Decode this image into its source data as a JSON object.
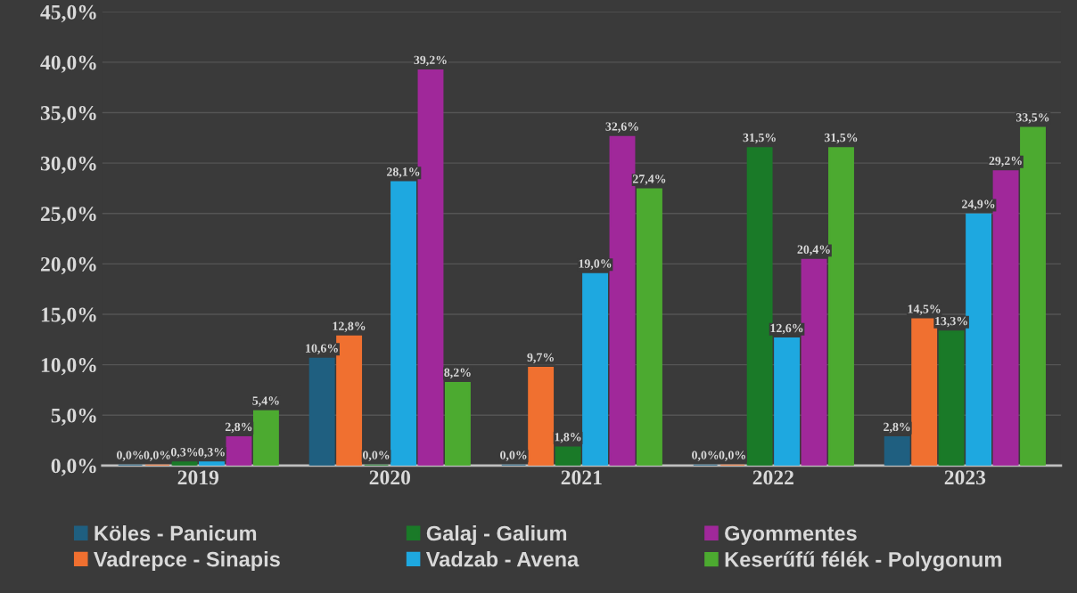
{
  "chart_data": {
    "type": "bar",
    "categories": [
      "2019",
      "2020",
      "2021",
      "2022",
      "2023"
    ],
    "series": [
      {
        "name": "Köles - Panicum",
        "color": "#1f5f80",
        "values": [
          0.0,
          10.6,
          0.0,
          0.0,
          2.8
        ],
        "value_labels": [
          "0,0%",
          "10,6%",
          "0,0%",
          "0,0%",
          "2,8%"
        ]
      },
      {
        "name": "Vadrepce - Sinapis",
        "color": "#f07030",
        "values": [
          0.0,
          12.8,
          9.7,
          0.0,
          14.5
        ],
        "value_labels": [
          "0,0%",
          "12,8%",
          "9,7%",
          "0,0%",
          "14,5%"
        ]
      },
      {
        "name": "Galaj - Galium",
        "color": "#1a7a28",
        "values": [
          0.3,
          0.0,
          1.8,
          31.5,
          13.3
        ],
        "value_labels": [
          "0,3%",
          "0,0%",
          "1,8%",
          "31,5%",
          "13,3%"
        ]
      },
      {
        "name": "Vadzab - Avena",
        "color": "#1ea8e0",
        "values": [
          0.3,
          28.1,
          19.0,
          12.6,
          24.9
        ],
        "value_labels": [
          "0,3%",
          "28,1%",
          "19,0%",
          "12,6%",
          "24,9%"
        ]
      },
      {
        "name": "Gyommentes",
        "color": "#a0289a",
        "values": [
          2.8,
          39.2,
          32.6,
          20.4,
          29.2
        ],
        "value_labels": [
          "2,8%",
          "39,2%",
          "32,6%",
          "20,4%",
          "29,2%"
        ]
      },
      {
        "name": "Keserűfű félék - Polygonum",
        "color": "#4caa30",
        "values": [
          5.4,
          8.2,
          27.4,
          31.5,
          33.5
        ],
        "value_labels": [
          "5,4%",
          "8,2%",
          "27,4%",
          "31,5%",
          "33,5%"
        ]
      }
    ],
    "ylim": [
      0,
      45
    ],
    "yticks": [
      {
        "value": 0,
        "label": "0,0%"
      },
      {
        "value": 5,
        "label": "5,0%"
      },
      {
        "value": 10,
        "label": "10,0%"
      },
      {
        "value": 15,
        "label": "15,0%"
      },
      {
        "value": 20,
        "label": "20,0%"
      },
      {
        "value": 25,
        "label": "25,0%"
      },
      {
        "value": 30,
        "label": "30,0%"
      },
      {
        "value": 35,
        "label": "35,0%"
      },
      {
        "value": 40,
        "label": "40,0%"
      },
      {
        "value": 45,
        "label": "45,0%"
      }
    ],
    "grid": "y",
    "legend": "bottom"
  }
}
